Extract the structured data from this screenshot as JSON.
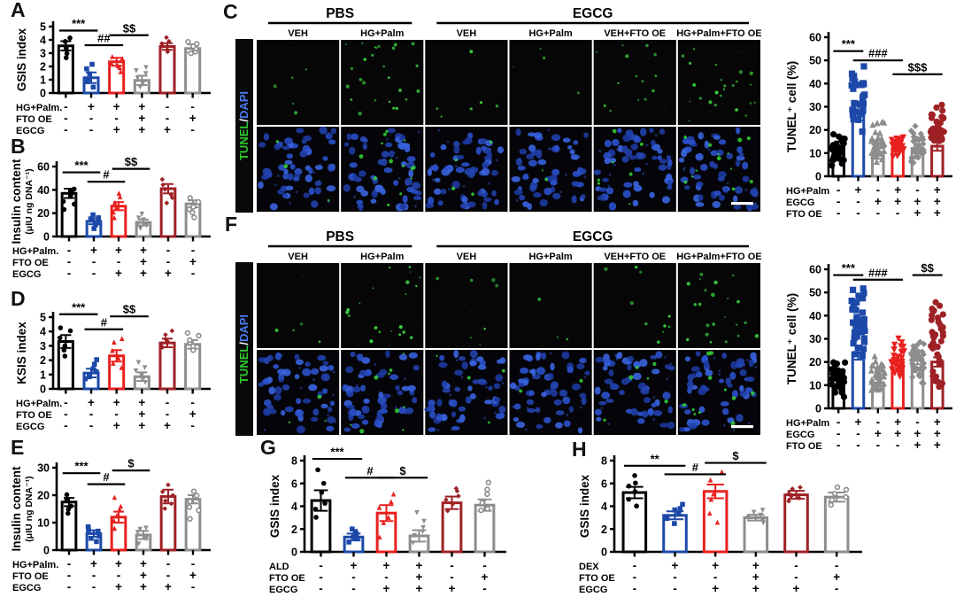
{
  "figure": {
    "background": "#ffffff"
  },
  "colors": {
    "black": "#000000",
    "blue": "#1c49a9",
    "red": "#e8201e",
    "gray": "#8d8d8d",
    "darkred": "#9e2125"
  },
  "panels": {
    "A": {
      "letter": "A"
    },
    "B": {
      "letter": "B"
    },
    "C": {
      "letter": "C"
    },
    "D": {
      "letter": "D"
    },
    "E": {
      "letter": "E"
    },
    "F": {
      "letter": "F"
    },
    "G": {
      "letter": "G"
    },
    "H": {
      "letter": "H"
    }
  },
  "micro": {
    "C": {
      "group_headers": [
        {
          "label": "PBS",
          "from": 0,
          "to": 1
        },
        {
          "label": "EGCG",
          "from": 2,
          "to": 5
        }
      ],
      "col_labels": [
        "VEH",
        "HG+Palm",
        "VEH",
        "HG+Palm",
        "VEH+FTO OE",
        "HG+Palm+FTO OE"
      ],
      "stain_parts": [
        {
          "text": "TUNEL",
          "color": "#2ec92e"
        },
        {
          "text": "/",
          "color": "#ffffff"
        },
        {
          "text": "DAPI",
          "color": "#4b7bef"
        }
      ],
      "green_top": [
        5,
        26,
        6,
        4,
        14,
        24
      ],
      "green_bottom": [
        3,
        13,
        4,
        2,
        7,
        13
      ],
      "nuclei": 54,
      "scalebar": true,
      "seed": 21
    },
    "F": {
      "group_headers": [
        {
          "label": "PBS",
          "from": 0,
          "to": 1
        },
        {
          "label": "EGCG",
          "from": 2,
          "to": 5
        }
      ],
      "col_labels": [
        "VEH",
        "HG+Palm",
        "VEH",
        "HG+Palm",
        "VEH+FTO OE",
        "HG+Palm+FTO OE"
      ],
      "stain_parts": [
        {
          "text": "TUNEL",
          "color": "#2ec92e"
        },
        {
          "text": "/",
          "color": "#ffffff"
        },
        {
          "text": "DAPI",
          "color": "#4b7bef"
        }
      ],
      "green_top": [
        4,
        20,
        7,
        3,
        10,
        22
      ],
      "green_bottom": [
        3,
        9,
        4,
        2,
        6,
        12
      ],
      "nuclei": 52,
      "scalebar": true,
      "seed": 33
    }
  },
  "chart_data": {
    "A": {
      "type": "bar",
      "ylabel_lines": [
        "GSIS index"
      ],
      "ymax": 5,
      "yticks": [
        0,
        1,
        2,
        3,
        4,
        5
      ],
      "bars": [
        3.55,
        1.15,
        2.35,
        0.95,
        3.5,
        3.35
      ],
      "errors": [
        0.35,
        0.4,
        0.3,
        0.35,
        0.25,
        0.3
      ],
      "bar_colors": [
        "black",
        "blue",
        "red",
        "gray",
        "darkred",
        "gray"
      ],
      "markers": [
        "circle",
        "square",
        "triangle-up",
        "triangle-down",
        "diamond",
        "circle-open"
      ],
      "point_ranges": [
        [
          2.5,
          4.3
        ],
        [
          0.3,
          2.3
        ],
        [
          1.5,
          2.9
        ],
        [
          0.2,
          2.2
        ],
        [
          3.0,
          4.2
        ],
        [
          2.9,
          4.0
        ]
      ],
      "point_count": 6,
      "point_r": 2.8,
      "sig": [
        {
          "text": "***",
          "from": 0,
          "to": 1,
          "y": 4.7
        },
        {
          "text": "##",
          "from": 1,
          "to": 2,
          "y": 3.6
        },
        {
          "text": "$$",
          "from": 2,
          "to": 3,
          "y": 4.35
        }
      ],
      "matrix": {
        "rows": [
          {
            "label": "HG+Palm.",
            "signs": [
              "-",
              "+",
              "+",
              "+",
              "-",
              "-"
            ]
          },
          {
            "label": "FTO OE",
            "signs": [
              "-",
              "-",
              "-",
              "+",
              "-",
              "+"
            ]
          },
          {
            "label": "EGCG",
            "signs": [
              "-",
              "-",
              "+",
              "+",
              "+",
              "-"
            ]
          }
        ]
      },
      "ml": 44,
      "seed": 11
    },
    "B": {
      "type": "bar",
      "ylabel_lines": [
        "Insulin content",
        "(μIU ng DNA⁻¹)"
      ],
      "ymax": 60,
      "yticks": [
        0,
        20,
        40,
        60
      ],
      "bars": [
        37,
        13,
        26,
        12,
        41,
        28
      ],
      "errors": [
        4,
        2.5,
        3.5,
        2.5,
        4,
        3
      ],
      "bar_colors": [
        "black",
        "blue",
        "red",
        "gray",
        "darkred",
        "gray"
      ],
      "markers": [
        "circle",
        "square",
        "triangle-up",
        "triangle-down",
        "diamond",
        "circle-open"
      ],
      "point_ranges": [
        [
          22,
          44
        ],
        [
          6,
          20
        ],
        [
          15,
          40
        ],
        [
          6,
          20
        ],
        [
          28,
          50
        ],
        [
          16,
          34
        ]
      ],
      "point_count": 6,
      "point_r": 2.8,
      "sig": [
        {
          "text": "***",
          "from": 0,
          "to": 1,
          "y": 55
        },
        {
          "text": "#",
          "from": 1,
          "to": 2,
          "y": 47
        },
        {
          "text": "$$",
          "from": 2,
          "to": 3,
          "y": 58
        }
      ],
      "matrix": {
        "rows": [
          {
            "label": "HG+Palm.",
            "signs": [
              "-",
              "+",
              "+",
              "+",
              "-",
              "-"
            ]
          },
          {
            "label": "FTO OE",
            "signs": [
              "-",
              "-",
              "-",
              "+",
              "-",
              "+"
            ]
          },
          {
            "label": "EGCG",
            "signs": [
              "-",
              "-",
              "+",
              "+",
              "+",
              "-"
            ]
          }
        ]
      },
      "ml": 52,
      "seed": 12
    },
    "C": {
      "type": "bar",
      "ylabel_lines": [
        "TUNEL⁺ cell (%)"
      ],
      "ymax": 60,
      "yticks": [
        0,
        10,
        20,
        30,
        40,
        50,
        60
      ],
      "bars": [
        13,
        28,
        9,
        12,
        12,
        13
      ],
      "errors": [
        2,
        4,
        1.5,
        1.5,
        2,
        2
      ],
      "bar_colors": [
        "black",
        "blue",
        "gray",
        "red",
        "gray",
        "darkred"
      ],
      "markers": [
        "circle",
        "square",
        "triangle-up",
        "triangle-down",
        "diamond",
        "circle"
      ],
      "point_ranges": [
        [
          4,
          20
        ],
        [
          17,
          48
        ],
        [
          4,
          25
        ],
        [
          8,
          18
        ],
        [
          4,
          24
        ],
        [
          9,
          33
        ]
      ],
      "point_count": 34,
      "point_r": 3.6,
      "dense": true,
      "sig": [
        {
          "text": "***",
          "from": 0,
          "to": 1,
          "y": 54
        },
        {
          "text": "###",
          "from": 1,
          "to": 3,
          "y": 50
        },
        {
          "text": "$$$",
          "from": 3,
          "to": 5,
          "y": 44
        }
      ],
      "matrix": {
        "rows": [
          {
            "label": "HG+Palm",
            "signs": [
              "-",
              "+",
              "-",
              "+",
              "-",
              "+"
            ]
          },
          {
            "label": "EGCG",
            "signs": [
              "-",
              "-",
              "+",
              "+",
              "+",
              "+"
            ]
          },
          {
            "label": "FTO OE",
            "signs": [
              "-",
              "-",
              "-",
              "-",
              "+",
              "+"
            ]
          }
        ]
      },
      "ml": 50,
      "seed": 13
    },
    "D": {
      "type": "bar",
      "ylabel_lines": [
        "KSIS index"
      ],
      "ymax": 5,
      "yticks": [
        0,
        1,
        2,
        3,
        4,
        5
      ],
      "bars": [
        3.3,
        1.1,
        2.3,
        0.85,
        3.2,
        3.1
      ],
      "errors": [
        0.45,
        0.3,
        0.4,
        0.3,
        0.3,
        0.3
      ],
      "bar_colors": [
        "black",
        "blue",
        "red",
        "gray",
        "darkred",
        "gray"
      ],
      "markers": [
        "circle",
        "square",
        "triangle-up",
        "triangle-down",
        "diamond",
        "circle-open"
      ],
      "point_ranges": [
        [
          2.1,
          4.5
        ],
        [
          0.5,
          2.2
        ],
        [
          1.2,
          3.9
        ],
        [
          0.3,
          1.9
        ],
        [
          2.8,
          4.1
        ],
        [
          2.6,
          4.0
        ]
      ],
      "point_count": 6,
      "point_r": 2.8,
      "sig": [
        {
          "text": "***",
          "from": 0,
          "to": 1,
          "y": 5.2
        },
        {
          "text": "#",
          "from": 1,
          "to": 2,
          "y": 4.15
        },
        {
          "text": "$$",
          "from": 2,
          "to": 3,
          "y": 5.05
        }
      ],
      "matrix": {
        "rows": [
          {
            "label": "HG+Palm.",
            "signs": [
              "-",
              "+",
              "+",
              "+",
              "-",
              "-"
            ]
          },
          {
            "label": "FTO OE",
            "signs": [
              "-",
              "-",
              "-",
              "+",
              "-",
              "+"
            ]
          },
          {
            "label": "EGCG",
            "signs": [
              "-",
              "-",
              "+",
              "+",
              "+",
              "-"
            ]
          }
        ]
      },
      "ml": 44,
      "seed": 14
    },
    "E": {
      "type": "bar",
      "ylabel_lines": [
        "Insulin content",
        "(μIU ng DNA⁻¹)"
      ],
      "ymax": 30,
      "yticks": [
        0,
        10,
        20,
        30
      ],
      "bars": [
        17.5,
        6,
        12,
        5.5,
        19.5,
        18.5
      ],
      "errors": [
        1.5,
        1.2,
        2,
        1.5,
        2.5,
        1.5
      ],
      "bar_colors": [
        "black",
        "blue",
        "red",
        "gray",
        "darkred",
        "gray"
      ],
      "markers": [
        "circle",
        "square",
        "triangle-up",
        "triangle-down",
        "diamond",
        "circle-open"
      ],
      "point_ranges": [
        [
          13,
          21
        ],
        [
          3,
          9
        ],
        [
          7,
          20
        ],
        [
          2,
          9
        ],
        [
          14,
          24
        ],
        [
          11,
          22
        ]
      ],
      "point_count": 6,
      "point_r": 2.8,
      "sig": [
        {
          "text": "***",
          "from": 0,
          "to": 1,
          "y": 28
        },
        {
          "text": "#",
          "from": 1,
          "to": 2,
          "y": 24
        },
        {
          "text": "$",
          "from": 2,
          "to": 3,
          "y": 29
        }
      ],
      "matrix": {
        "rows": [
          {
            "label": "HG+Palm.",
            "signs": [
              "-",
              "+",
              "+",
              "+",
              "-",
              "-"
            ]
          },
          {
            "label": "FTO OE",
            "signs": [
              "-",
              "-",
              "-",
              "+",
              "-",
              "+"
            ]
          },
          {
            "label": "EGCG",
            "signs": [
              "-",
              "-",
              "+",
              "+",
              "+",
              "-"
            ]
          }
        ]
      },
      "ml": 52,
      "seed": 15
    },
    "F": {
      "type": "bar",
      "ylabel_lines": [
        "TUNEL⁺ cell (%)"
      ],
      "ymax": 60,
      "yticks": [
        0,
        10,
        20,
        30,
        40,
        50,
        60
      ],
      "bars": [
        14,
        24,
        11,
        21,
        21,
        20
      ],
      "errors": [
        2,
        3,
        1.5,
        2,
        2,
        2
      ],
      "bar_colors": [
        "black",
        "blue",
        "gray",
        "red",
        "gray",
        "darkred"
      ],
      "markers": [
        "circle",
        "square",
        "triangle-up",
        "triangle-down",
        "diamond",
        "circle"
      ],
      "point_ranges": [
        [
          3,
          23
        ],
        [
          20,
          53
        ],
        [
          4,
          24
        ],
        [
          10,
          31
        ],
        [
          9,
          31
        ],
        [
          8,
          52
        ]
      ],
      "point_count": 38,
      "point_r": 3.6,
      "dense": true,
      "sig": [
        {
          "text": "***",
          "from": 0,
          "to": 1,
          "y": 57.5
        },
        {
          "text": "###",
          "from": 1,
          "to": 3,
          "y": 55.5
        },
        {
          "text": "$$",
          "from": 4,
          "to": 5,
          "y": 57.5
        }
      ],
      "matrix": {
        "rows": [
          {
            "label": "HG+Palm",
            "signs": [
              "-",
              "+",
              "-",
              "+",
              "-",
              "+"
            ]
          },
          {
            "label": "EGCG",
            "signs": [
              "-",
              "-",
              "+",
              "+",
              "+",
              "+"
            ]
          },
          {
            "label": "FTO OE",
            "signs": [
              "-",
              "-",
              "-",
              "-",
              "+",
              "+"
            ]
          }
        ]
      },
      "ml": 50,
      "seed": 16
    },
    "G": {
      "type": "bar",
      "ylabel_lines": [
        "GSIS index"
      ],
      "ymax": 8,
      "yticks": [
        0,
        2,
        4,
        6,
        8
      ],
      "bars": [
        4.5,
        1.3,
        3.4,
        1.4,
        4.3,
        4.1
      ],
      "errors": [
        0.9,
        0.3,
        0.7,
        0.5,
        0.55,
        0.5
      ],
      "bar_colors": [
        "black",
        "blue",
        "red",
        "gray",
        "darkred",
        "gray"
      ],
      "markers": [
        "circle",
        "square",
        "triangle-up",
        "triangle-down",
        "diamond",
        "circle-open"
      ],
      "point_ranges": [
        [
          2.5,
          7.4
        ],
        [
          0.8,
          2.1
        ],
        [
          1.2,
          5.7
        ],
        [
          0.6,
          3.5
        ],
        [
          3.5,
          5.9
        ],
        [
          3.2,
          6.2
        ]
      ],
      "point_count": 6,
      "point_r": 2.8,
      "sig": [
        {
          "text": "***",
          "from": 0,
          "to": 1,
          "y": 8.15
        },
        {
          "text": "#",
          "from": 1,
          "to": 2,
          "y": 6.5
        },
        {
          "text": "$",
          "from": 2,
          "to": 3,
          "y": 6.5
        }
      ],
      "matrix": {
        "rows": [
          {
            "label": "ALD",
            "signs": [
              "-",
              "+",
              "+",
              "+",
              "-",
              "-"
            ]
          },
          {
            "label": "FTO OE",
            "signs": [
              "-",
              "-",
              "-",
              "+",
              "-",
              "+"
            ]
          },
          {
            "label": "EGCG",
            "signs": [
              "-",
              "-",
              "+",
              "+",
              "+",
              "-"
            ]
          }
        ]
      },
      "ml": 42,
      "seed": 17
    },
    "H": {
      "type": "bar",
      "ylabel_lines": [
        "GSIS index"
      ],
      "ymax": 8,
      "yticks": [
        0,
        2,
        4,
        6,
        8
      ],
      "bars": [
        5.2,
        3.2,
        5.3,
        3.0,
        5.0,
        4.8
      ],
      "errors": [
        0.5,
        0.35,
        0.6,
        0.25,
        0.35,
        0.4
      ],
      "bar_colors": [
        "black",
        "blue",
        "red",
        "gray",
        "darkred",
        "gray"
      ],
      "markers": [
        "circle",
        "square",
        "triangle-up",
        "triangle-down",
        "diamond",
        "circle-open"
      ],
      "point_ranges": [
        [
          3.8,
          7.0
        ],
        [
          2.4,
          4.4
        ],
        [
          2.4,
          7.2
        ],
        [
          2.4,
          3.8
        ],
        [
          4.2,
          5.9
        ],
        [
          4.0,
          5.8
        ]
      ],
      "point_count": 6,
      "point_r": 2.8,
      "sig": [
        {
          "text": "**",
          "from": 0,
          "to": 1,
          "y": 7.55
        },
        {
          "text": "#",
          "from": 1,
          "to": 2,
          "y": 6.8
        },
        {
          "text": "$",
          "from": 2,
          "to": 3,
          "y": 7.8
        }
      ],
      "matrix": {
        "rows": [
          {
            "label": "DEX",
            "signs": [
              "-",
              "+",
              "+",
              "+",
              "-",
              "-"
            ]
          },
          {
            "label": "FTO OE",
            "signs": [
              "-",
              "-",
              "-",
              "+",
              "-",
              "+"
            ]
          },
          {
            "label": "EGCG",
            "signs": [
              "-",
              "-",
              "+",
              "+",
              "+",
              "-"
            ]
          }
        ]
      },
      "ml": 42,
      "seed": 18
    }
  }
}
